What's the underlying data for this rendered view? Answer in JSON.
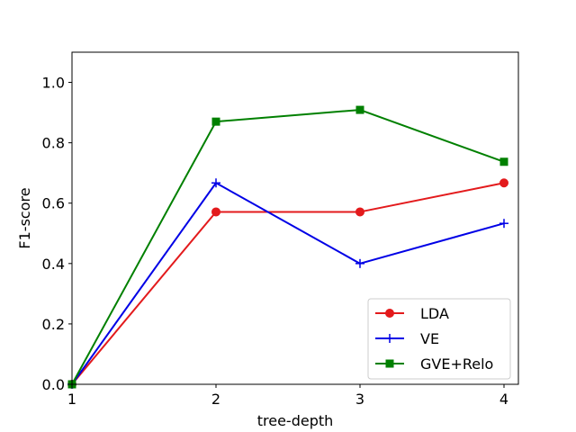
{
  "chart_data": {
    "type": "line",
    "title": "",
    "xlabel": "tree-depth",
    "ylabel": "F1-score",
    "x": [
      1,
      2,
      3,
      4
    ],
    "xticks": [
      "1",
      "2",
      "3",
      "4"
    ],
    "yticks": [
      "0.0",
      "0.2",
      "0.4",
      "0.6",
      "0.8",
      "1.0"
    ],
    "xlim": [
      1,
      4.1
    ],
    "ylim": [
      0,
      1.1
    ],
    "grid": false,
    "legend_position": "lower-right",
    "series": [
      {
        "name": "LDA",
        "color": "#e31a1c",
        "marker": "circle",
        "values": [
          0.0,
          0.571,
          0.571,
          0.667
        ]
      },
      {
        "name": "VE",
        "color": "#0000e6",
        "marker": "plus",
        "values": [
          0.0,
          0.667,
          0.4,
          0.533
        ]
      },
      {
        "name": "GVE+Relo",
        "color": "#008000",
        "marker": "square",
        "values": [
          0.0,
          0.87,
          0.909,
          0.737
        ]
      }
    ]
  }
}
